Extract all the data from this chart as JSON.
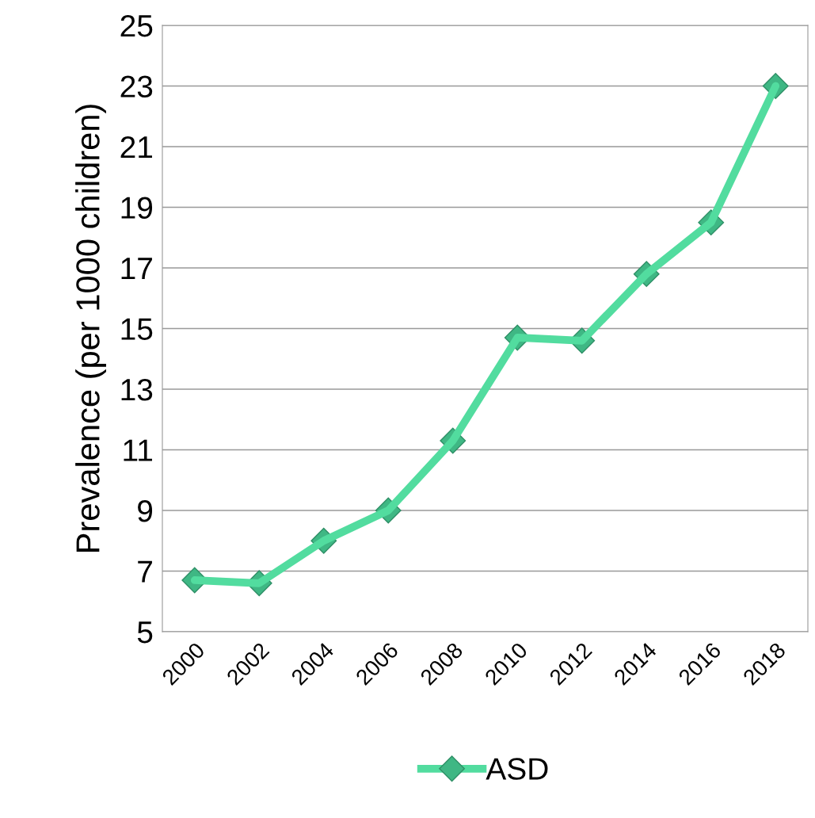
{
  "chart_data": {
    "type": "line",
    "ylabel": "Prevalence (per 1000 children)",
    "categories": [
      "2000",
      "2002",
      "2004",
      "2006",
      "2008",
      "2010",
      "2012",
      "2014",
      "2016",
      "2018"
    ],
    "series": [
      {
        "name": "ASD",
        "color": "#52dc9f",
        "values": [
          6.7,
          6.6,
          8.0,
          9.0,
          11.3,
          14.7,
          14.6,
          16.8,
          18.5,
          23.0
        ]
      }
    ],
    "ylim": [
      5,
      25
    ],
    "yticks": [
      5,
      7,
      9,
      11,
      13,
      15,
      17,
      19,
      21,
      23,
      25
    ],
    "grid": "y",
    "legend": "bottom",
    "marker": "diamond",
    "line_style": "solid"
  }
}
